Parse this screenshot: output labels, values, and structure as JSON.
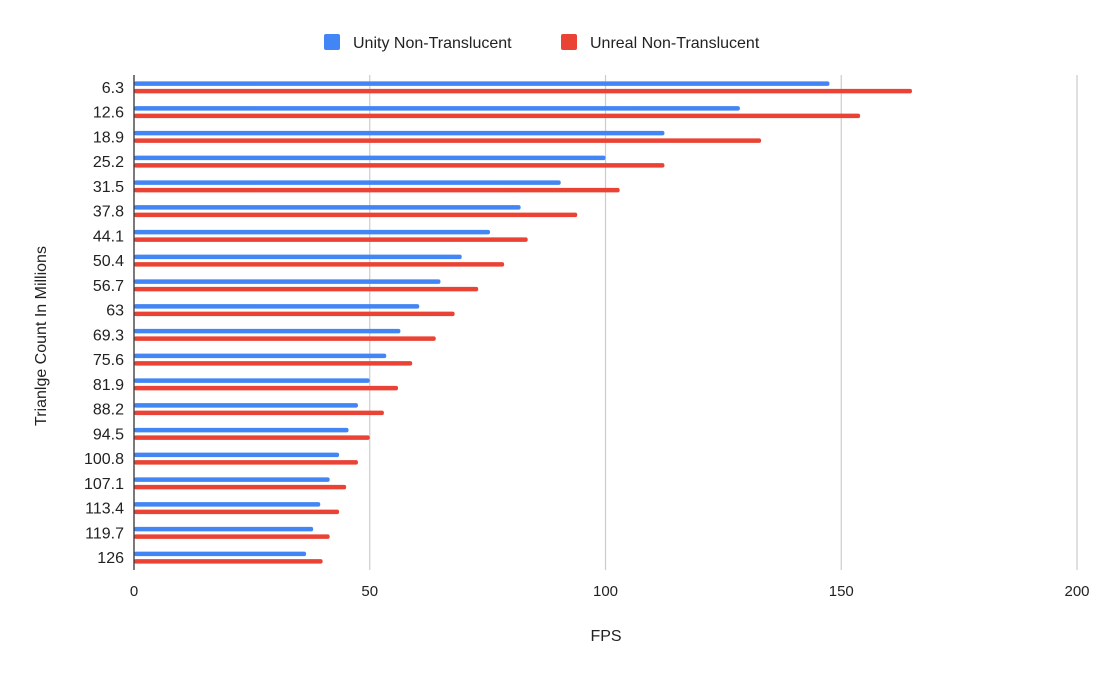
{
  "chart_data": {
    "type": "bar",
    "orientation": "horizontal",
    "title": "",
    "xlabel": "FPS",
    "ylabel": "Trianlge Count In Millions",
    "xlim": [
      0,
      200
    ],
    "xticks": [
      "0",
      "50",
      "100",
      "150",
      "200"
    ],
    "grid": true,
    "legend_position": "top-center",
    "categories": [
      "6.3",
      "12.6",
      "18.9",
      "25.2",
      "31.5",
      "37.8",
      "44.1",
      "50.4",
      "56.7",
      "63",
      "69.3",
      "75.6",
      "81.9",
      "88.2",
      "94.5",
      "100.8",
      "107.1",
      "113.4",
      "119.7",
      "126"
    ],
    "series": [
      {
        "name": "Unity Non-Translucent",
        "color": "#4285f4",
        "values": [
          147.5,
          128.5,
          112.5,
          100,
          90.5,
          82,
          75.5,
          69.5,
          65,
          60.5,
          56.5,
          53.5,
          50,
          47.5,
          45.5,
          43.5,
          41.5,
          39.5,
          38,
          36.5
        ]
      },
      {
        "name": "Unreal Non-Translucent",
        "color": "#ea4335",
        "values": [
          165,
          154,
          133,
          112.5,
          103,
          94,
          83.5,
          78.5,
          73,
          68,
          64,
          59,
          56,
          53,
          50,
          47.5,
          45,
          43.5,
          41.5,
          40
        ]
      }
    ]
  }
}
